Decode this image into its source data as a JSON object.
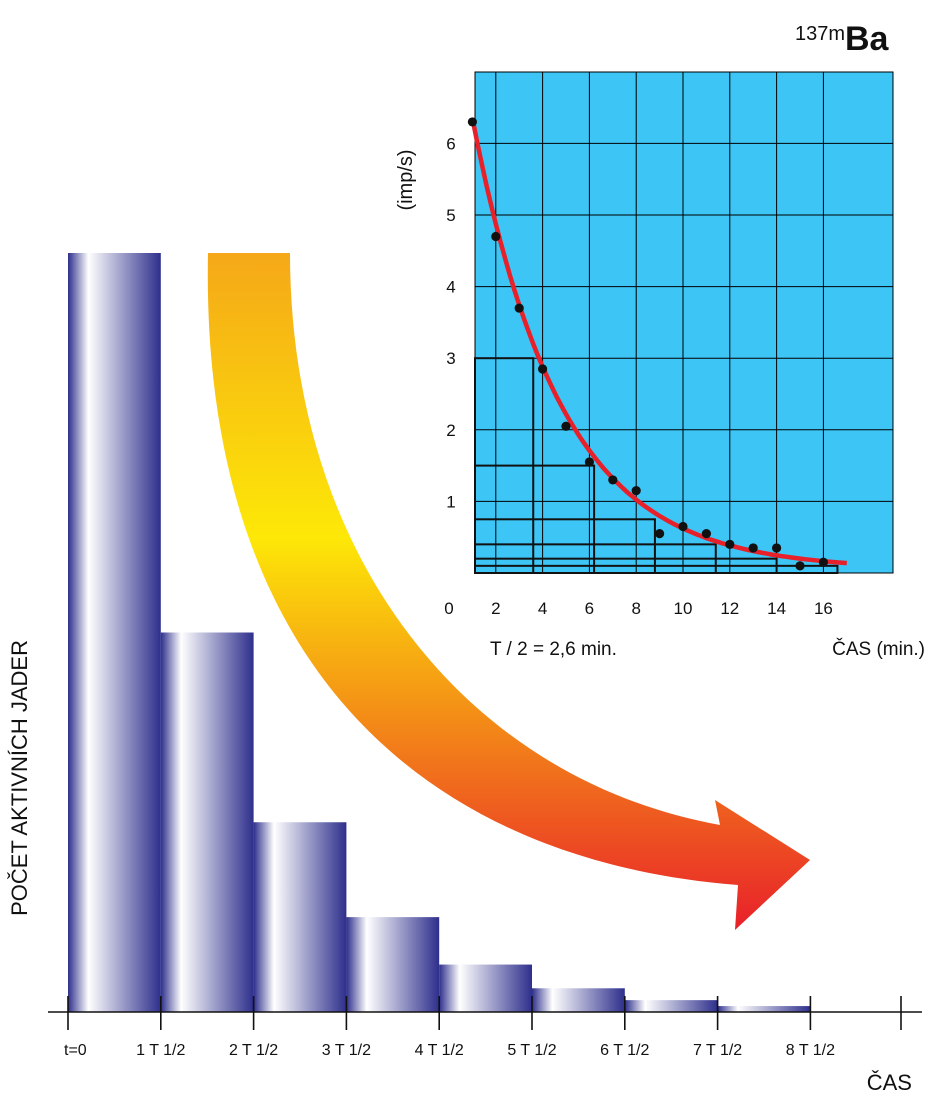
{
  "colors": {
    "bar_dark": "#2e2f8c",
    "bar_light": "#ffffff",
    "inset_background": "#3cc5f5",
    "fit_curve": "#e8202a",
    "arrow_start": "#f5a818",
    "arrow_mid": "#fde807",
    "arrow_end": "#e8202a"
  },
  "isotope": {
    "mass": "137m",
    "symbol": "Ba"
  },
  "chart_data": [
    {
      "type": "bar",
      "ylabel": "POČET AKTIVNÍCH JADER",
      "xlabel": "ČAS",
      "categories": [
        "t=0",
        "1 T 1/2",
        "2 T 1/2",
        "3 T 1/2",
        "4 T 1/2",
        "5 T 1/2",
        "6 T 1/2",
        "7 T 1/2"
      ],
      "x_tick_labels": [
        "t=0",
        "1 T 1/2",
        "2 T 1/2",
        "3 T 1/2",
        "4 T 1/2",
        "5 T 1/2",
        "6 T 1/2",
        "7 T 1/2",
        "8 T 1/2"
      ],
      "values": [
        1,
        0.5,
        0.25,
        0.125,
        0.0625,
        0.03125,
        0.015625,
        0.0078125
      ],
      "ylim": [
        0,
        1
      ],
      "annotation": "decay-arrow"
    },
    {
      "type": "scatter",
      "ylabel": "(imp/s)",
      "xlabel": "ČAS (min.)",
      "annotation": "T / 2 = 2,6 min.",
      "xlim": [
        0,
        18
      ],
      "ylim": [
        0,
        7
      ],
      "x_ticks": [
        0,
        2,
        4,
        6,
        8,
        10,
        12,
        14,
        16
      ],
      "y_ticks": [
        1,
        2,
        3,
        4,
        5,
        6
      ],
      "grid": true,
      "points": {
        "x": [
          1,
          2,
          3,
          4,
          5,
          6,
          7,
          8,
          9,
          10,
          11,
          12,
          13,
          14,
          15,
          16
        ],
        "y": [
          6.3,
          4.7,
          3.7,
          2.85,
          2.05,
          1.55,
          1.3,
          1.15,
          0.55,
          0.65,
          0.55,
          0.4,
          0.35,
          0.35,
          0.1,
          0.15
        ]
      },
      "fit_curve": {
        "model": "exponential",
        "y0": 6.3,
        "half_life": 2.6,
        "x_start": 1,
        "x_end": 17
      },
      "halving_steps": [
        {
          "x": 3.6,
          "y": 3.0
        },
        {
          "x": 6.2,
          "y": 1.5
        },
        {
          "x": 8.8,
          "y": 0.75
        },
        {
          "x": 11.4,
          "y": 0.4
        },
        {
          "x": 14.0,
          "y": 0.2
        },
        {
          "x": 16.6,
          "y": 0.1
        }
      ]
    }
  ]
}
